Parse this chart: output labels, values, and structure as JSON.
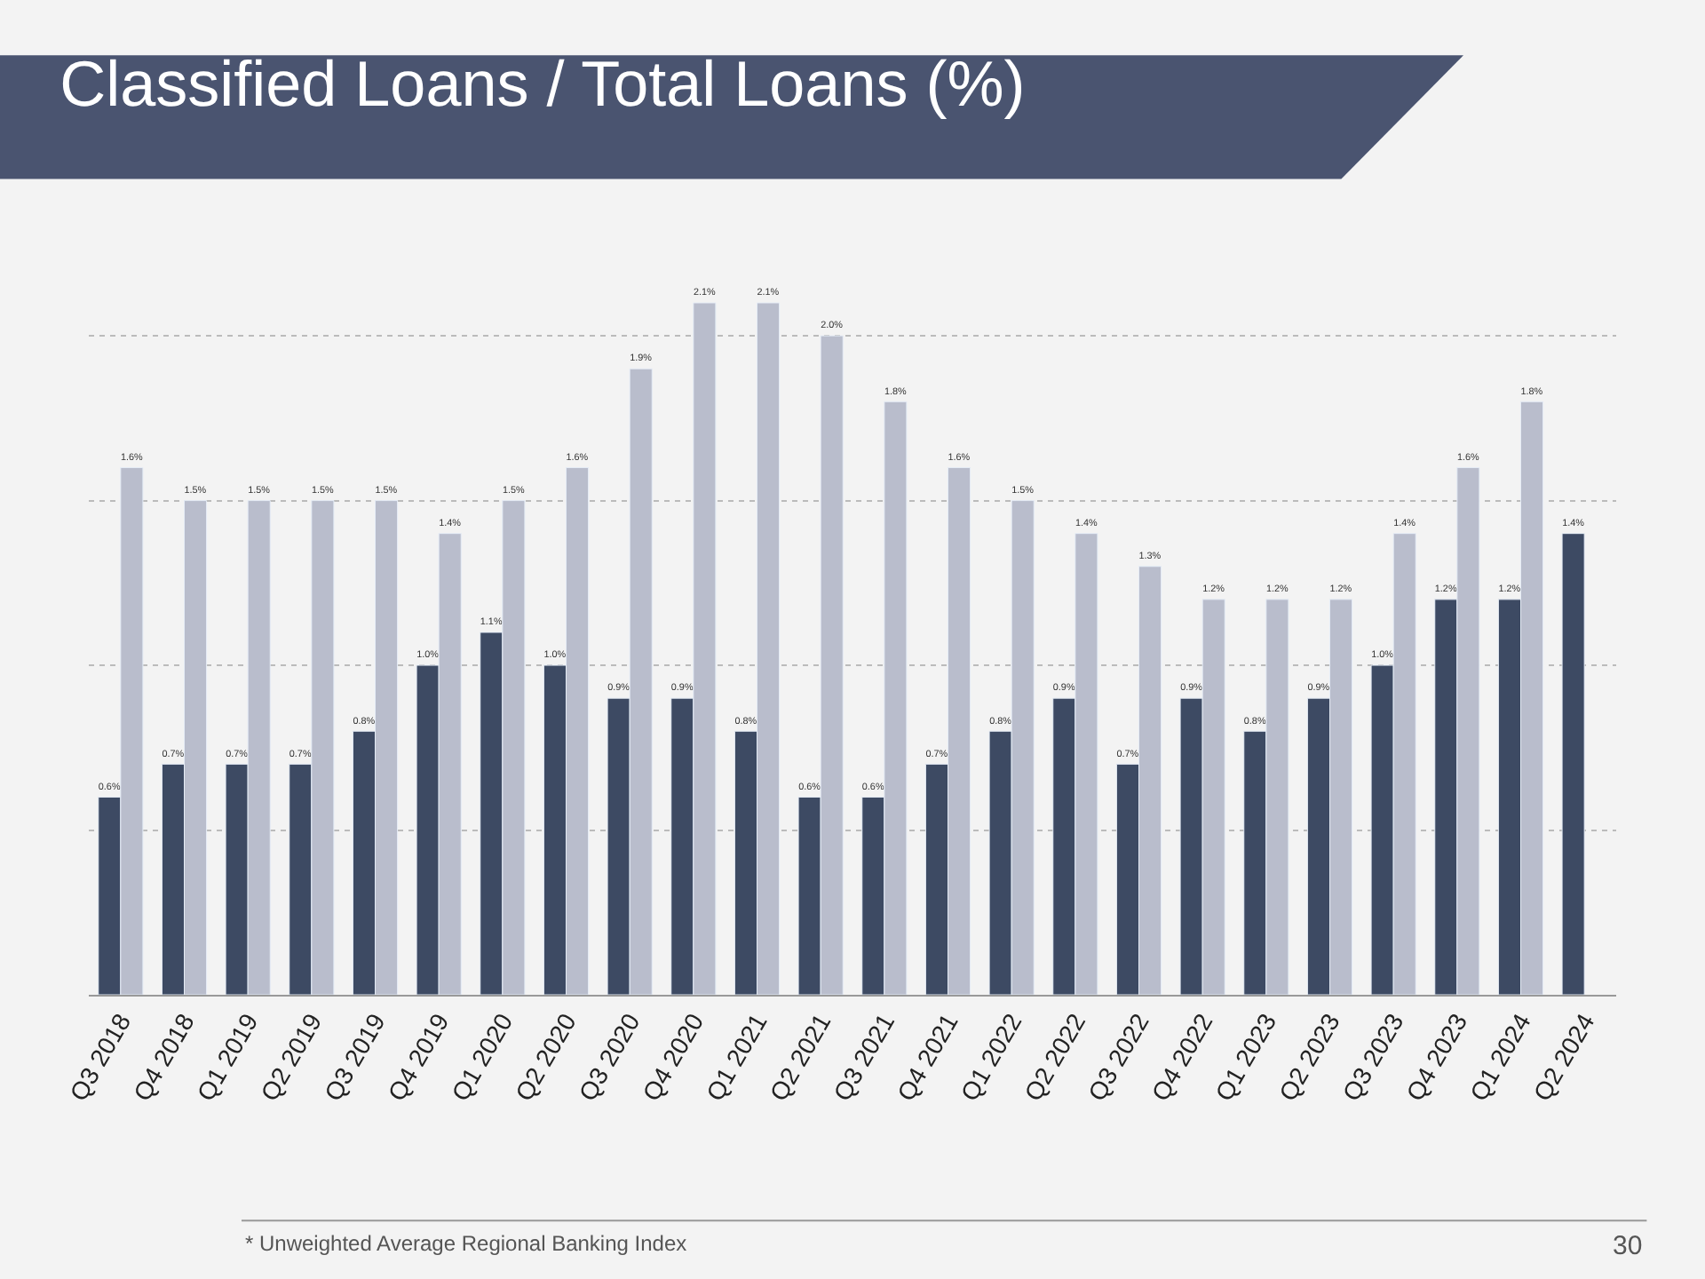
{
  "chart_data": {
    "type": "bar",
    "title": "Classified Loans / Total Loans (%)",
    "categories": [
      "Q3 2018",
      "Q4 2018",
      "Q1 2019",
      "Q2 2019",
      "Q3 2019",
      "Q4 2019",
      "Q1 2020",
      "Q2 2020",
      "Q3 2020",
      "Q4 2020",
      "Q1 2021",
      "Q2 2021",
      "Q3 2021",
      "Q4 2021",
      "Q1 2022",
      "Q2 2022",
      "Q3 2022",
      "Q4 2022",
      "Q1 2023",
      "Q2 2023",
      "Q3 2023",
      "Q4 2023",
      "Q1 2024",
      "Q2 2024"
    ],
    "series": [
      {
        "color": "#3d4a63",
        "values": [
          0.6,
          0.7,
          0.7,
          0.7,
          0.8,
          1.0,
          1.1,
          1.0,
          0.9,
          0.9,
          0.8,
          0.6,
          0.6,
          0.7,
          0.8,
          0.9,
          0.7,
          0.9,
          0.8,
          0.9,
          1.0,
          1.2,
          1.2,
          1.4
        ],
        "value_labels": [
          "0.6%",
          "0.7%",
          "0.7%",
          "0.7%",
          "0.8%",
          "1.0%",
          "1.1%",
          "1.0%",
          "0.9%",
          "0.9%",
          "0.8%",
          "0.6%",
          "0.6%",
          "0.7%",
          "0.8%",
          "0.9%",
          "0.7%",
          "0.9%",
          "0.8%",
          "0.9%",
          "1.0%",
          "1.2%",
          "1.2%",
          "1.4%"
        ]
      },
      {
        "color": "#b9bdcc",
        "values": [
          1.6,
          1.5,
          1.5,
          1.5,
          1.5,
          1.4,
          1.5,
          1.6,
          1.9,
          2.1,
          2.1,
          2.0,
          1.8,
          1.6,
          1.5,
          1.4,
          1.3,
          1.2,
          1.2,
          1.2,
          1.4,
          1.6,
          1.8,
          null
        ],
        "value_labels": [
          "1.6%",
          "1.5%",
          "1.5%",
          "1.5%",
          "1.5%",
          "1.4%",
          "1.5%",
          "1.6%",
          "1.9%",
          "2.1%",
          "2.1%",
          "2.0%",
          "1.8%",
          "1.6%",
          "1.5%",
          "1.4%",
          "1.3%",
          "1.2%",
          "1.2%",
          "1.2%",
          "1.4%",
          "1.6%",
          "1.8%",
          null
        ]
      }
    ],
    "yticks": [
      {
        "value": 0,
        "label": null
      },
      {
        "value": 0.5,
        "label": null
      },
      {
        "value": 1.0,
        "label": null
      },
      {
        "value": 1.5,
        "label": null
      },
      {
        "value": 2.0,
        "label": null
      }
    ],
    "tick_labels": "x",
    "grid": "y",
    "annotations": [
      "* Unweighted Average Regional Banking Index",
      "30"
    ]
  }
}
